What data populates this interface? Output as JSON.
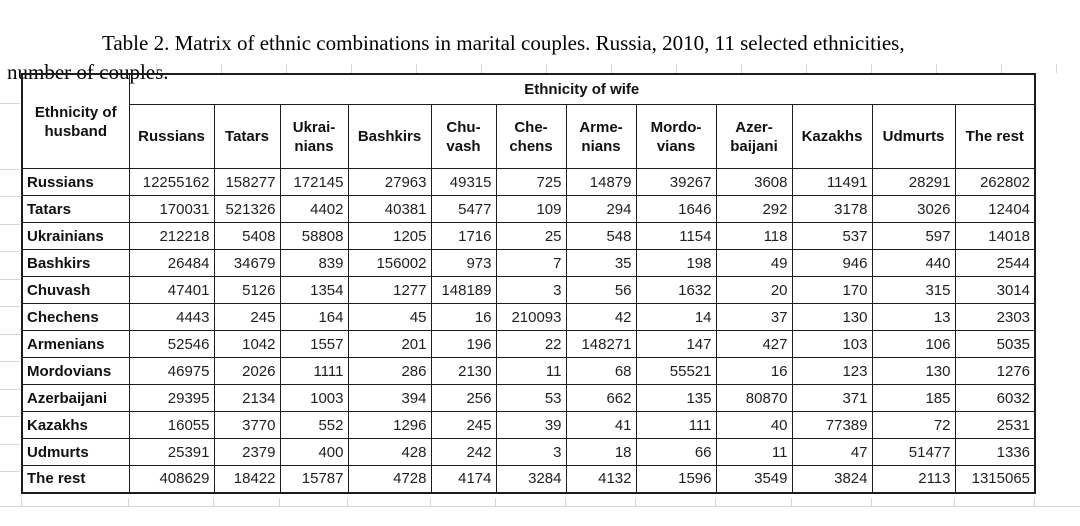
{
  "title": {
    "line1": "Table 2. Matrix of ethnic combinations in marital couples. Russia, 2010, 11 selected ethnicities,",
    "line2": "number of couples."
  },
  "table": {
    "husband_header": "Ethnicity of\nhusband",
    "wife_header": "Ethnicity of wife",
    "columns": [
      "Russians",
      "Tatars",
      "Ukrai-\nnians",
      "Bashkirs",
      "Chu-\nvash",
      "Che-\nchens",
      "Arme-\nnians",
      "Mordo-\nvians",
      "Azer-\nbaijani",
      "Kazakhs",
      "Udmurts",
      "The rest"
    ],
    "rows": [
      {
        "label": "Russians",
        "values": [
          12255162,
          158277,
          172145,
          27963,
          49315,
          725,
          14879,
          39267,
          3608,
          11491,
          28291,
          262802
        ]
      },
      {
        "label": "Tatars",
        "values": [
          170031,
          521326,
          4402,
          40381,
          5477,
          109,
          294,
          1646,
          292,
          3178,
          3026,
          12404
        ]
      },
      {
        "label": "Ukrainians",
        "values": [
          212218,
          5408,
          58808,
          1205,
          1716,
          25,
          548,
          1154,
          118,
          537,
          597,
          14018
        ]
      },
      {
        "label": "Bashkirs",
        "values": [
          26484,
          34679,
          839,
          156002,
          973,
          7,
          35,
          198,
          49,
          946,
          440,
          2544
        ]
      },
      {
        "label": "Chuvash",
        "values": [
          47401,
          5126,
          1354,
          1277,
          148189,
          3,
          56,
          1632,
          20,
          170,
          315,
          3014
        ]
      },
      {
        "label": "Chechens",
        "values": [
          4443,
          245,
          164,
          45,
          16,
          210093,
          42,
          14,
          37,
          130,
          13,
          2303
        ]
      },
      {
        "label": "Armenians",
        "values": [
          52546,
          1042,
          1557,
          201,
          196,
          22,
          148271,
          147,
          427,
          103,
          106,
          5035
        ]
      },
      {
        "label": "Mordovians",
        "values": [
          46975,
          2026,
          1111,
          286,
          2130,
          11,
          68,
          55521,
          16,
          123,
          130,
          1276
        ]
      },
      {
        "label": "Azerbaijani",
        "values": [
          29395,
          2134,
          1003,
          394,
          256,
          53,
          662,
          135,
          80870,
          371,
          185,
          6032
        ]
      },
      {
        "label": "Kazakhs",
        "values": [
          16055,
          3770,
          552,
          1296,
          245,
          39,
          41,
          111,
          40,
          77389,
          72,
          2531
        ]
      },
      {
        "label": "Udmurts",
        "values": [
          25391,
          2379,
          400,
          428,
          242,
          3,
          18,
          66,
          11,
          47,
          51477,
          1336
        ]
      },
      {
        "label": "The rest",
        "values": [
          408629,
          18422,
          15787,
          4728,
          4174,
          3284,
          4132,
          1596,
          3549,
          3824,
          2113,
          1315065
        ]
      }
    ]
  }
}
